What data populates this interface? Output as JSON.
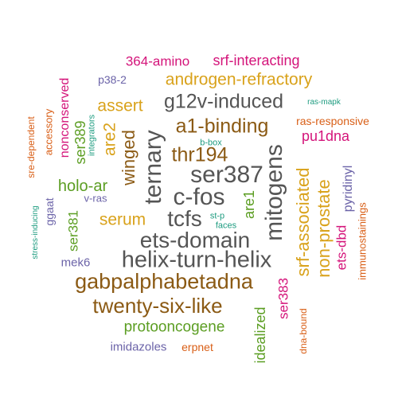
{
  "palette": {
    "brown": "#8B5A14",
    "gray": "#555555",
    "gold": "#D9A21B",
    "magenta": "#D4147A",
    "green": "#5C9E23",
    "purple": "#6B63A8",
    "teal": "#1E9C80",
    "orange": "#D95F17"
  },
  "words": [
    {
      "text": "helix-turn-helix",
      "color": "gray"
    },
    {
      "text": "ets-domain",
      "color": "gray"
    },
    {
      "text": "gabpalphabetadna",
      "color": "brown"
    },
    {
      "text": "ser387",
      "color": "gray"
    },
    {
      "text": "c-fos",
      "color": "gray"
    },
    {
      "text": "tcfs",
      "color": "gray"
    },
    {
      "text": "ternary",
      "color": "gray"
    },
    {
      "text": "mitogens",
      "color": "gray"
    },
    {
      "text": "twenty-six-like",
      "color": "brown"
    },
    {
      "text": "g12v-induced",
      "color": "gray"
    },
    {
      "text": "a1-binding",
      "color": "brown"
    },
    {
      "text": "androgen-refractory",
      "color": "gold"
    },
    {
      "text": "thr194",
      "color": "brown"
    },
    {
      "text": "srf-associated",
      "color": "gold"
    },
    {
      "text": "non-prostate",
      "color": "gold"
    },
    {
      "text": "winged",
      "color": "brown"
    },
    {
      "text": "serum",
      "color": "gold"
    },
    {
      "text": "protooncogene",
      "color": "green"
    },
    {
      "text": "assert",
      "color": "gold"
    },
    {
      "text": "are2",
      "color": "gold"
    },
    {
      "text": "holo-ar",
      "color": "green"
    },
    {
      "text": "364-amino",
      "color": "magenta"
    },
    {
      "text": "srf-interacting",
      "color": "magenta"
    },
    {
      "text": "pu1dna",
      "color": "magenta"
    },
    {
      "text": "ser389",
      "color": "green"
    },
    {
      "text": "nonconserved",
      "color": "magenta"
    },
    {
      "text": "ser381",
      "color": "green"
    },
    {
      "text": "are1",
      "color": "green"
    },
    {
      "text": "ser383",
      "color": "magenta"
    },
    {
      "text": "idealized",
      "color": "green"
    },
    {
      "text": "ets-dbd",
      "color": "magenta"
    },
    {
      "text": "ras-responsive",
      "color": "orange"
    },
    {
      "text": "p38-2",
      "color": "purple"
    },
    {
      "text": "imidazoles",
      "color": "purple"
    },
    {
      "text": "erpnet",
      "color": "orange"
    },
    {
      "text": "pyridinyl",
      "color": "purple"
    },
    {
      "text": "immunostainings",
      "color": "orange"
    },
    {
      "text": "mek6",
      "color": "purple"
    },
    {
      "text": "ggaat",
      "color": "purple"
    },
    {
      "text": "accessory",
      "color": "orange"
    },
    {
      "text": "sre-dependent",
      "color": "orange"
    },
    {
      "text": "v-ras",
      "color": "purple"
    },
    {
      "text": "integrators",
      "color": "teal"
    },
    {
      "text": "b-box",
      "color": "teal"
    },
    {
      "text": "st-p",
      "color": "teal"
    },
    {
      "text": "faces",
      "color": "teal"
    },
    {
      "text": "ras-mapk",
      "color": "teal"
    },
    {
      "text": "stress-inducing",
      "color": "teal"
    },
    {
      "text": "dna-bound",
      "color": "orange"
    }
  ]
}
